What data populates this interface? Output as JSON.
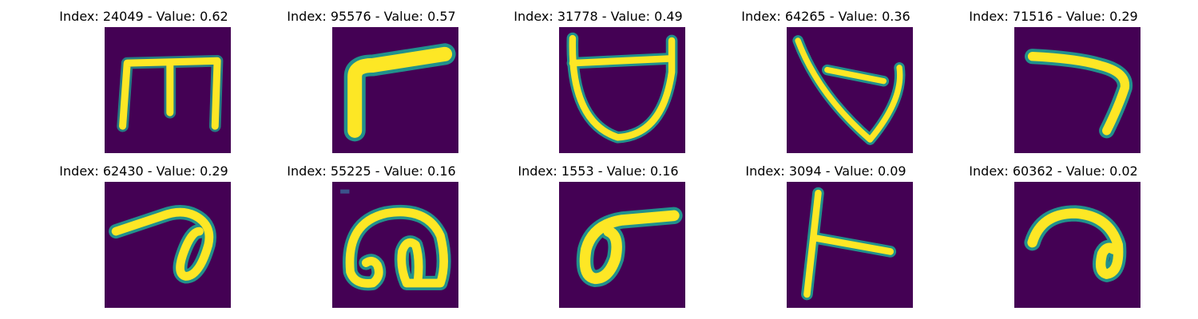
{
  "figure": {
    "background": "#ffffff",
    "colormap": "viridis",
    "colors": {
      "background": "#440154",
      "edge": "#21918c",
      "mid": "#5ec962",
      "stroke": "#fde725"
    },
    "panels": [
      {
        "index": 24049,
        "value": 0.62,
        "title": "Index: 24049 - Value: 0.62",
        "glyph": "glyph-m"
      },
      {
        "index": 95576,
        "value": 0.57,
        "title": "Index: 95576 - Value: 0.57",
        "glyph": "glyph-l-corner"
      },
      {
        "index": 31778,
        "value": 0.49,
        "title": "Index: 31778 - Value: 0.49",
        "glyph": "glyph-cup"
      },
      {
        "index": 64265,
        "value": 0.36,
        "title": "Index: 64265 - Value: 0.36",
        "glyph": "glyph-checkmark"
      },
      {
        "index": 71516,
        "value": 0.29,
        "title": "Index: 71516 - Value: 0.29",
        "glyph": "glyph-seven"
      },
      {
        "index": 62430,
        "value": 0.29,
        "title": "Index: 62430 - Value: 0.29",
        "glyph": "glyph-hook-loop"
      },
      {
        "index": 55225,
        "value": 0.16,
        "title": "Index: 55225 - Value: 0.16",
        "glyph": "glyph-spiral"
      },
      {
        "index": 1553,
        "value": 0.16,
        "title": "Index: 1553 - Value: 0.16",
        "glyph": "glyph-sigma"
      },
      {
        "index": 3094,
        "value": 0.09,
        "title": "Index: 3094 - Value: 0.09",
        "glyph": "glyph-t-side"
      },
      {
        "index": 60362,
        "value": 0.02,
        "title": "Index: 60362 - Value: 0.02",
        "glyph": "glyph-arc-loop"
      }
    ]
  }
}
